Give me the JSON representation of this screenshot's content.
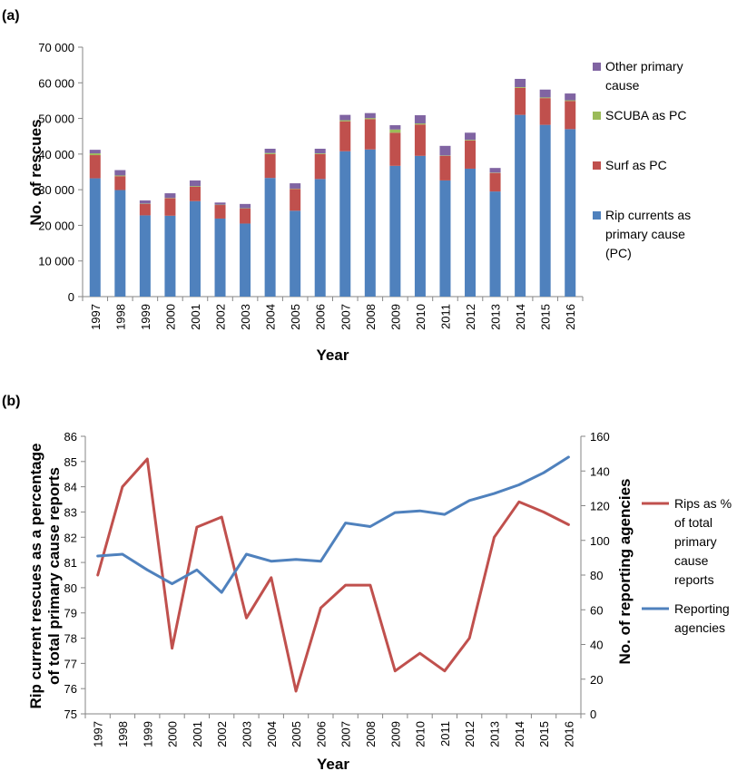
{
  "panels": {
    "a_label": "(a)",
    "b_label": "(b)"
  },
  "colors": {
    "rip": "#4F81BD",
    "surf": "#C0504D",
    "scuba": "#9BBB59",
    "other": "#8064A2",
    "axis": "#868686"
  },
  "chart_data": [
    {
      "type": "bar",
      "stacked": true,
      "title": "",
      "xlabel": "Year",
      "ylabel": "No. of rescues",
      "ylim": [
        0,
        70000
      ],
      "yticks": [
        "0",
        "10 000",
        "20 000",
        "30 000",
        "40 000",
        "50 000",
        "60 000",
        "70 000"
      ],
      "legend_position": "right",
      "categories": [
        "1997",
        "1998",
        "1999",
        "2000",
        "2001",
        "2002",
        "2003",
        "2004",
        "2005",
        "2006",
        "2007",
        "2008",
        "2009",
        "2010",
        "2011",
        "2012",
        "2013",
        "2014",
        "2015",
        "2016"
      ],
      "series": [
        {
          "name": "Rip currents as primary cause (PC)",
          "color": "#4F81BD",
          "values": [
            33200,
            29900,
            22800,
            22700,
            26800,
            21900,
            20500,
            33300,
            24100,
            33000,
            40800,
            41300,
            36700,
            39500,
            32600,
            35900,
            29500,
            51000,
            48200,
            47000
          ]
        },
        {
          "name": "Surf as PC",
          "color": "#C0504D",
          "values": [
            6500,
            3900,
            3200,
            4900,
            4000,
            3800,
            4200,
            6700,
            6100,
            7000,
            8400,
            8500,
            9300,
            8800,
            6900,
            7900,
            5200,
            7600,
            7500,
            7900
          ]
        },
        {
          "name": "SCUBA as PC",
          "color": "#9BBB59",
          "values": [
            500,
            200,
            100,
            100,
            200,
            100,
            100,
            300,
            100,
            200,
            300,
            300,
            900,
            300,
            100,
            200,
            100,
            200,
            200,
            200
          ]
        },
        {
          "name": "Other primary cause",
          "color": "#8064A2",
          "values": [
            1000,
            1500,
            900,
            1300,
            1600,
            600,
            1200,
            1200,
            1500,
            1300,
            1500,
            1400,
            1200,
            2300,
            2700,
            2000,
            1300,
            2300,
            2200,
            1900
          ]
        }
      ]
    },
    {
      "type": "line",
      "title": "",
      "xlabel": "Year",
      "ylabel_left": "Rip current rescues as a percentage of total primary cause reports",
      "ylabel_right": "No. of reporting agencies",
      "ylim_left": [
        75,
        86
      ],
      "ylim_right": [
        0,
        160
      ],
      "yticks_left": [
        "75",
        "76",
        "77",
        "78",
        "79",
        "80",
        "81",
        "82",
        "83",
        "84",
        "85",
        "86"
      ],
      "yticks_right": [
        "0",
        "20",
        "40",
        "60",
        "80",
        "100",
        "120",
        "140",
        "160"
      ],
      "legend_position": "right",
      "x": [
        "1997",
        "1998",
        "1999",
        "2000",
        "2001",
        "2002",
        "2003",
        "2004",
        "2005",
        "2006",
        "2007",
        "2008",
        "2009",
        "2010",
        "2011",
        "2012",
        "2013",
        "2014",
        "2015",
        "2016"
      ],
      "series": [
        {
          "name": "Rips as % of total primary cause reports",
          "axis": "left",
          "color": "#C0504D",
          "values": [
            80.5,
            84.0,
            85.1,
            77.6,
            82.4,
            82.8,
            78.8,
            80.4,
            75.9,
            79.2,
            80.1,
            80.1,
            76.7,
            77.4,
            76.7,
            78.0,
            82.0,
            83.4,
            83.0,
            82.5
          ]
        },
        {
          "name": "Reporting agencies",
          "axis": "right",
          "color": "#4F81BD",
          "values": [
            91,
            92,
            83,
            75,
            83,
            70,
            92,
            88,
            89,
            88,
            110,
            108,
            116,
            117,
            115,
            123,
            127,
            132,
            139,
            148
          ]
        }
      ]
    }
  ],
  "legend_a": [
    {
      "lines": [
        "Other primary",
        "cause"
      ],
      "color": "#8064A2"
    },
    {
      "lines": [
        "SCUBA as PC"
      ],
      "color": "#9BBB59"
    },
    {
      "lines": [
        "Surf as PC"
      ],
      "color": "#C0504D"
    },
    {
      "lines": [
        "Rip currents as",
        "primary cause",
        "(PC)"
      ],
      "color": "#4F81BD"
    }
  ],
  "legend_b": [
    {
      "lines": [
        "Rips as %",
        "of total",
        "primary",
        "cause",
        "reports"
      ],
      "color": "#C0504D"
    },
    {
      "lines": [
        "Reporting",
        "agencies"
      ],
      "color": "#4F81BD"
    }
  ]
}
